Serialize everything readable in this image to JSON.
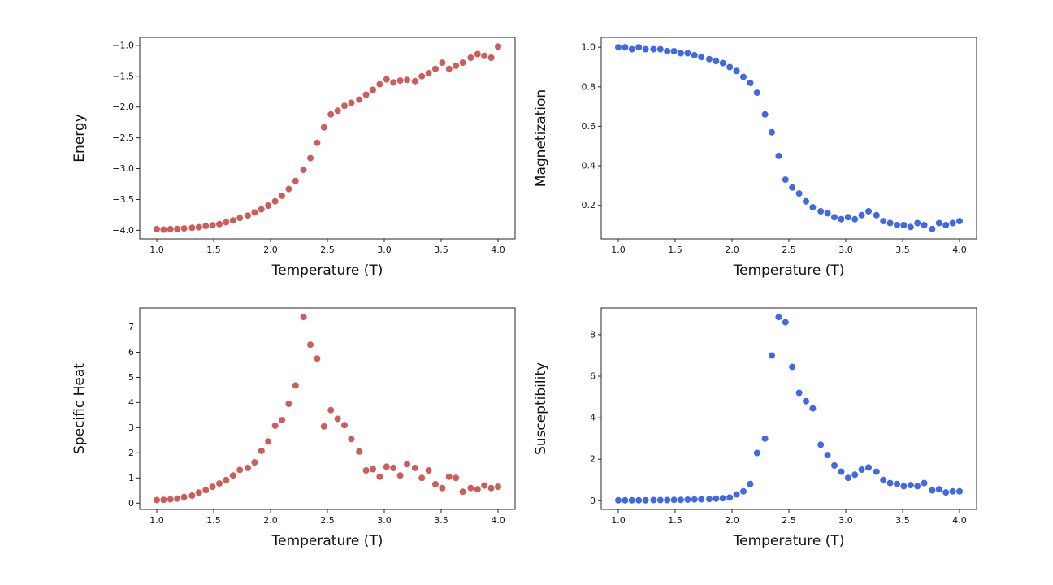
{
  "figure": {
    "background": "#ffffff"
  },
  "chart_data": [
    {
      "id": "energy",
      "type": "scatter",
      "title": "",
      "xlabel": "Temperature (T)",
      "ylabel": "Energy",
      "color": "#cd5c5c",
      "marker": "circle",
      "grid": false,
      "xlim": [
        0.85,
        4.15
      ],
      "ylim": [
        -4.14,
        -0.87
      ],
      "xticks": [
        1.0,
        1.5,
        2.0,
        2.5,
        3.0,
        3.5,
        4.0
      ],
      "xticklabels": [
        "1.0",
        "1.5",
        "2.0",
        "2.5",
        "3.0",
        "3.5",
        "4.0"
      ],
      "yticks": [
        -4.0,
        -3.5,
        -3.0,
        -2.5,
        -2.0,
        -1.5,
        -1.0
      ],
      "yticklabels": [
        "−4.0",
        "−3.5",
        "−3.0",
        "−2.5",
        "−2.0",
        "−1.5",
        "−1.0"
      ],
      "x": [
        1.0,
        1.06,
        1.12,
        1.18,
        1.24,
        1.31,
        1.37,
        1.43,
        1.49,
        1.55,
        1.61,
        1.67,
        1.73,
        1.8,
        1.86,
        1.92,
        1.98,
        2.04,
        2.1,
        2.16,
        2.22,
        2.29,
        2.35,
        2.41,
        2.47,
        2.53,
        2.59,
        2.65,
        2.71,
        2.78,
        2.84,
        2.9,
        2.96,
        3.02,
        3.08,
        3.14,
        3.2,
        3.27,
        3.33,
        3.39,
        3.45,
        3.51,
        3.57,
        3.63,
        3.69,
        3.76,
        3.82,
        3.88,
        3.94,
        4.0
      ],
      "y": [
        -3.98,
        -3.99,
        -3.98,
        -3.98,
        -3.97,
        -3.96,
        -3.95,
        -3.93,
        -3.92,
        -3.9,
        -3.87,
        -3.84,
        -3.8,
        -3.76,
        -3.71,
        -3.66,
        -3.6,
        -3.53,
        -3.44,
        -3.33,
        -3.2,
        -3.02,
        -2.83,
        -2.58,
        -2.33,
        -2.12,
        -2.06,
        -1.98,
        -1.93,
        -1.88,
        -1.8,
        -1.72,
        -1.63,
        -1.55,
        -1.6,
        -1.57,
        -1.56,
        -1.58,
        -1.5,
        -1.45,
        -1.38,
        -1.28,
        -1.38,
        -1.33,
        -1.28,
        -1.2,
        -1.14,
        -1.17,
        -1.2,
        -1.02
      ]
    },
    {
      "id": "magnetization",
      "type": "scatter",
      "title": "",
      "xlabel": "Temperature (T)",
      "ylabel": "Magnetization",
      "color": "#4169e1",
      "marker": "circle",
      "grid": false,
      "xlim": [
        0.85,
        4.15
      ],
      "ylim": [
        0.03,
        1.05
      ],
      "xticks": [
        1.0,
        1.5,
        2.0,
        2.5,
        3.0,
        3.5,
        4.0
      ],
      "xticklabels": [
        "1.0",
        "1.5",
        "2.0",
        "2.5",
        "3.0",
        "3.5",
        "4.0"
      ],
      "yticks": [
        0.2,
        0.4,
        0.6,
        0.8,
        1.0
      ],
      "yticklabels": [
        "0.2",
        "0.4",
        "0.6",
        "0.8",
        "1.0"
      ],
      "x": [
        1.0,
        1.06,
        1.12,
        1.18,
        1.24,
        1.31,
        1.37,
        1.43,
        1.49,
        1.55,
        1.61,
        1.67,
        1.73,
        1.8,
        1.86,
        1.92,
        1.98,
        2.04,
        2.1,
        2.16,
        2.22,
        2.29,
        2.35,
        2.41,
        2.47,
        2.53,
        2.59,
        2.65,
        2.71,
        2.78,
        2.84,
        2.9,
        2.96,
        3.02,
        3.08,
        3.14,
        3.2,
        3.27,
        3.33,
        3.39,
        3.45,
        3.51,
        3.57,
        3.63,
        3.69,
        3.76,
        3.82,
        3.88,
        3.94,
        4.0
      ],
      "y": [
        1.0,
        1.0,
        0.99,
        1.0,
        0.99,
        0.99,
        0.99,
        0.98,
        0.98,
        0.97,
        0.97,
        0.96,
        0.95,
        0.94,
        0.93,
        0.92,
        0.9,
        0.88,
        0.85,
        0.82,
        0.77,
        0.66,
        0.57,
        0.45,
        0.33,
        0.29,
        0.26,
        0.22,
        0.19,
        0.17,
        0.16,
        0.14,
        0.13,
        0.14,
        0.13,
        0.15,
        0.17,
        0.15,
        0.12,
        0.11,
        0.1,
        0.1,
        0.09,
        0.11,
        0.1,
        0.08,
        0.11,
        0.1,
        0.11,
        0.12
      ]
    },
    {
      "id": "specific-heat",
      "type": "scatter",
      "title": "",
      "xlabel": "Temperature (T)",
      "ylabel": "Specific Heat",
      "color": "#cd5c5c",
      "marker": "circle",
      "grid": false,
      "xlim": [
        0.85,
        4.15
      ],
      "ylim": [
        -0.25,
        7.76
      ],
      "xticks": [
        1.0,
        1.5,
        2.0,
        2.5,
        3.0,
        3.5,
        4.0
      ],
      "xticklabels": [
        "1.0",
        "1.5",
        "2.0",
        "2.5",
        "3.0",
        "3.5",
        "4.0"
      ],
      "yticks": [
        0,
        1,
        2,
        3,
        4,
        5,
        6,
        7
      ],
      "yticklabels": [
        "0",
        "1",
        "2",
        "3",
        "4",
        "5",
        "6",
        "7"
      ],
      "x": [
        1.0,
        1.06,
        1.12,
        1.18,
        1.24,
        1.31,
        1.37,
        1.43,
        1.49,
        1.55,
        1.61,
        1.67,
        1.73,
        1.8,
        1.86,
        1.92,
        1.98,
        2.04,
        2.1,
        2.16,
        2.22,
        2.29,
        2.35,
        2.41,
        2.47,
        2.53,
        2.59,
        2.65,
        2.71,
        2.78,
        2.84,
        2.9,
        2.96,
        3.02,
        3.08,
        3.14,
        3.2,
        3.27,
        3.33,
        3.39,
        3.45,
        3.51,
        3.57,
        3.63,
        3.69,
        3.76,
        3.82,
        3.88,
        3.94,
        4.0
      ],
      "y": [
        0.12,
        0.13,
        0.15,
        0.18,
        0.24,
        0.3,
        0.42,
        0.52,
        0.65,
        0.78,
        0.92,
        1.1,
        1.32,
        1.4,
        1.62,
        2.08,
        2.45,
        3.08,
        3.3,
        3.95,
        4.68,
        7.4,
        6.3,
        5.75,
        3.05,
        3.7,
        3.35,
        3.1,
        2.55,
        2.05,
        1.3,
        1.35,
        1.05,
        1.45,
        1.4,
        1.1,
        1.55,
        1.4,
        1.0,
        1.3,
        0.75,
        0.6,
        1.05,
        1.0,
        0.45,
        0.6,
        0.55,
        0.7,
        0.6,
        0.65
      ]
    },
    {
      "id": "susceptibility",
      "type": "scatter",
      "title": "",
      "xlabel": "Temperature (T)",
      "ylabel": "Susceptibility",
      "color": "#4169e1",
      "marker": "circle",
      "grid": false,
      "xlim": [
        0.85,
        4.15
      ],
      "ylim": [
        -0.42,
        9.29
      ],
      "xticks": [
        1.0,
        1.5,
        2.0,
        2.5,
        3.0,
        3.5,
        4.0
      ],
      "xticklabels": [
        "1.0",
        "1.5",
        "2.0",
        "2.5",
        "3.0",
        "3.5",
        "4.0"
      ],
      "yticks": [
        0,
        2,
        4,
        6,
        8
      ],
      "yticklabels": [
        "0",
        "2",
        "4",
        "6",
        "8"
      ],
      "x": [
        1.0,
        1.06,
        1.12,
        1.18,
        1.24,
        1.31,
        1.37,
        1.43,
        1.49,
        1.55,
        1.61,
        1.67,
        1.73,
        1.8,
        1.86,
        1.92,
        1.98,
        2.04,
        2.1,
        2.16,
        2.22,
        2.29,
        2.35,
        2.41,
        2.47,
        2.53,
        2.59,
        2.65,
        2.71,
        2.78,
        2.84,
        2.9,
        2.96,
        3.02,
        3.08,
        3.14,
        3.2,
        3.27,
        3.33,
        3.39,
        3.45,
        3.51,
        3.57,
        3.63,
        3.69,
        3.76,
        3.82,
        3.88,
        3.94,
        4.0
      ],
      "y": [
        0.02,
        0.02,
        0.02,
        0.02,
        0.02,
        0.03,
        0.03,
        0.03,
        0.04,
        0.04,
        0.05,
        0.06,
        0.07,
        0.08,
        0.1,
        0.12,
        0.15,
        0.3,
        0.45,
        0.8,
        2.3,
        3.0,
        7.0,
        8.85,
        8.6,
        6.45,
        5.2,
        4.8,
        4.45,
        2.7,
        2.2,
        1.7,
        1.4,
        1.1,
        1.25,
        1.5,
        1.6,
        1.4,
        1.0,
        0.85,
        0.8,
        0.7,
        0.75,
        0.7,
        0.85,
        0.5,
        0.55,
        0.4,
        0.45,
        0.45
      ]
    }
  ]
}
